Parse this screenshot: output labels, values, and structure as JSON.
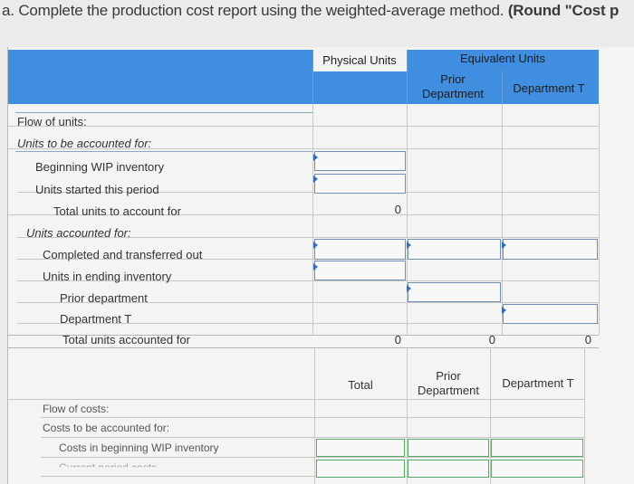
{
  "heading": {
    "prefix": "a.",
    "text": "Complete the production cost report using the weighted-average method.",
    "bold_tail": "(Round \"Cost p"
  },
  "units_table": {
    "headers": {
      "physical_units": "Physical Units",
      "equivalent_units": "Equivalent Units",
      "prior_department": "Prior Department",
      "department_t": "Department T"
    },
    "rows": {
      "flow_of_units": "Flow of units:",
      "units_to_account": "Units to be accounted for:",
      "beginning_wip": "Beginning WIP inventory",
      "units_started": "Units started this period",
      "total_to_account": "Total units to account for",
      "units_accounted": "Units accounted for:",
      "completed_transferred": "Completed and transferred out",
      "ending_inventory": "Units in ending inventory",
      "prior_department": "Prior department",
      "department_t": "Department T",
      "total_accounted": "Total units accounted for"
    },
    "values": {
      "total_to_account_physical": "0",
      "total_accounted_physical": "0",
      "total_accounted_prior": "0",
      "total_accounted_dept_t": "0"
    }
  },
  "cost_table": {
    "headers": {
      "total": "Total",
      "prior_department": "Prior Department",
      "department_t": "Department T"
    },
    "rows": {
      "flow_of_costs": "Flow of costs:",
      "costs_to_account": "Costs to be accounted for:",
      "beginning_wip_costs": "Costs in beginning WIP inventory",
      "current_period_costs": "Current period costs"
    }
  }
}
